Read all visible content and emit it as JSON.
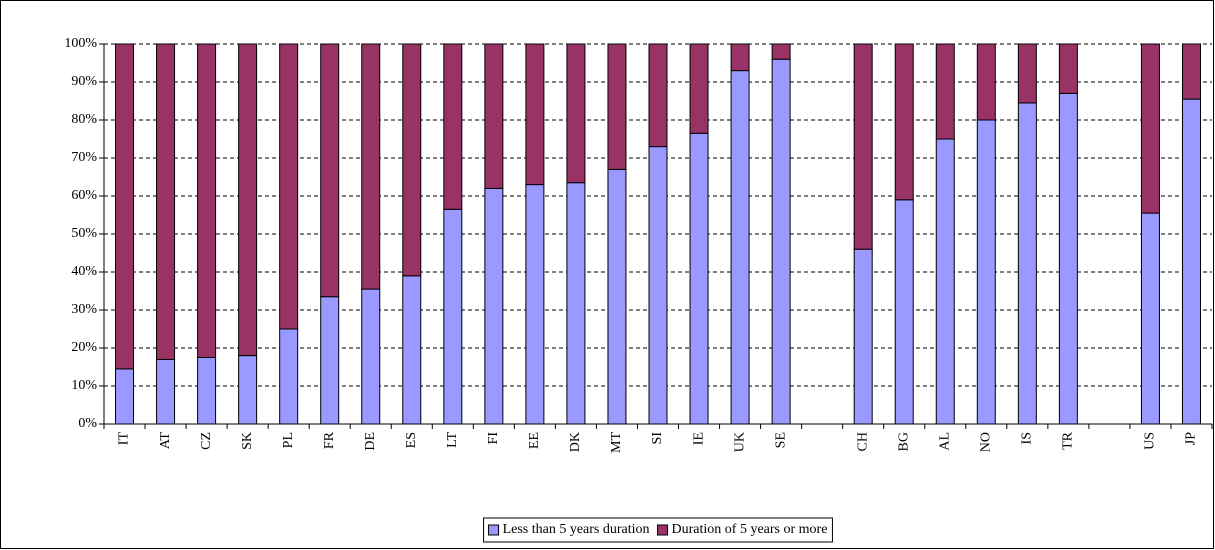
{
  "chart_data": {
    "type": "stacked_bar",
    "categories": [
      "IT",
      "AT",
      "CZ",
      "SK",
      "PL",
      "FR",
      "DE",
      "ES",
      "LT",
      "FI",
      "EE",
      "DK",
      "MT",
      "SI",
      "IE",
      "UK",
      "SE",
      null,
      "CH",
      "BG",
      "AL",
      "NO",
      "IS",
      "TR",
      null,
      "US",
      "JP"
    ],
    "series": [
      {
        "name": "Less than 5 years duration",
        "color": "#9999ff",
        "values": [
          14.5,
          17,
          17.5,
          18,
          25,
          33.5,
          35.5,
          39,
          56.5,
          62,
          63,
          63.5,
          67,
          73,
          76.5,
          93,
          96,
          null,
          46,
          59,
          75,
          80,
          84.5,
          87,
          null,
          55.5,
          85.5
        ]
      },
      {
        "name": "Duration of 5 years or more",
        "color": "#993366",
        "values": [
          85.5,
          83,
          82.5,
          82,
          75,
          66.5,
          64.5,
          61,
          43.5,
          38,
          37,
          36.5,
          33,
          27,
          23.5,
          7,
          4,
          null,
          54,
          41,
          25,
          20,
          15.5,
          13,
          null,
          44.5,
          14.5
        ]
      }
    ],
    "ylim": [
      0,
      100
    ],
    "yticks": [
      {
        "value": 0,
        "label": "0%"
      },
      {
        "value": 10,
        "label": "10%"
      },
      {
        "value": 20,
        "label": "20%"
      },
      {
        "value": 30,
        "label": "30%"
      },
      {
        "value": 40,
        "label": "40%"
      },
      {
        "value": 50,
        "label": "50%"
      },
      {
        "value": 60,
        "label": "60%"
      },
      {
        "value": 70,
        "label": "70%"
      },
      {
        "value": 80,
        "label": "80%"
      },
      {
        "value": 90,
        "label": "90%"
      },
      {
        "value": 100,
        "label": "100%"
      }
    ],
    "grid": true,
    "legend": "bottom"
  }
}
